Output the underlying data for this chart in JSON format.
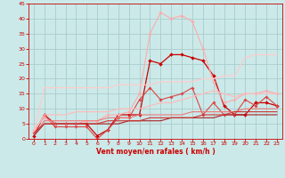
{
  "background_color": "#cbe9e9",
  "grid_color": "#aacccc",
  "xlabel": "Vent moyen/en rafales ( km/h )",
  "xlabel_color": "#cc0000",
  "tick_color": "#cc0000",
  "xlim": [
    -0.5,
    23.5
  ],
  "ylim": [
    0,
    45
  ],
  "yticks": [
    0,
    5,
    10,
    15,
    20,
    25,
    30,
    35,
    40,
    45
  ],
  "xticks": [
    0,
    1,
    2,
    3,
    4,
    5,
    6,
    7,
    8,
    9,
    10,
    11,
    12,
    13,
    14,
    15,
    16,
    17,
    18,
    19,
    20,
    21,
    22,
    23
  ],
  "series": [
    {
      "x": [
        0,
        1,
        2,
        3,
        4,
        5,
        6,
        7,
        8,
        9,
        10,
        11,
        12,
        13,
        14,
        15,
        16,
        17,
        18,
        19,
        20,
        21,
        22,
        23
      ],
      "y": [
        1,
        8,
        5,
        5,
        5,
        5,
        1,
        3,
        8,
        8,
        8,
        26,
        25,
        28,
        28,
        27,
        26,
        21,
        11,
        8,
        8,
        12,
        12,
        11
      ],
      "color": "#cc0000",
      "lw": 0.9,
      "marker": "D",
      "ms": 2.0
    },
    {
      "x": [
        0,
        1,
        2,
        3,
        4,
        5,
        6,
        7,
        8,
        9,
        10,
        11,
        12,
        13,
        14,
        15,
        16,
        17,
        18,
        19,
        20,
        21,
        22,
        23
      ],
      "y": [
        2,
        8,
        4,
        4,
        4,
        4,
        0,
        3,
        7,
        7,
        13,
        17,
        13,
        14,
        15,
        17,
        8,
        12,
        8,
        8,
        13,
        11,
        14,
        11
      ],
      "color": "#dd4444",
      "lw": 0.8,
      "marker": "D",
      "ms": 1.8
    },
    {
      "x": [
        0,
        1,
        2,
        3,
        4,
        5,
        6,
        7,
        8,
        9,
        10,
        11,
        12,
        13,
        14,
        15,
        16,
        17,
        18,
        19,
        20,
        21,
        22,
        23
      ],
      "y": [
        3,
        7,
        5,
        5,
        5,
        6,
        6,
        8,
        8,
        9,
        15,
        35,
        42,
        40,
        41,
        39,
        30,
        19,
        12,
        13,
        15,
        15,
        16,
        15
      ],
      "color": "#ffaaaa",
      "lw": 0.8,
      "marker": "D",
      "ms": 1.8
    },
    {
      "x": [
        0,
        1,
        2,
        3,
        4,
        5,
        6,
        7,
        8,
        9,
        10,
        11,
        12,
        13,
        14,
        15,
        16,
        17,
        18,
        19,
        20,
        21,
        22,
        23
      ],
      "y": [
        2,
        17,
        17,
        17,
        17,
        17,
        17,
        17,
        18,
        18,
        18,
        18,
        19,
        19,
        19,
        19,
        20,
        20,
        21,
        21,
        27,
        28,
        28,
        28
      ],
      "color": "#ffcccc",
      "lw": 0.9,
      "marker": null,
      "ms": 0
    },
    {
      "x": [
        0,
        1,
        2,
        3,
        4,
        5,
        6,
        7,
        8,
        9,
        10,
        11,
        12,
        13,
        14,
        15,
        16,
        17,
        18,
        19,
        20,
        21,
        22,
        23
      ],
      "y": [
        2,
        8,
        8,
        8,
        9,
        9,
        9,
        9,
        10,
        10,
        10,
        11,
        12,
        12,
        13,
        14,
        15,
        16,
        15,
        14,
        15,
        15,
        15,
        15
      ],
      "color": "#ffbbbb",
      "lw": 0.9,
      "marker": null,
      "ms": 0
    },
    {
      "x": [
        0,
        1,
        2,
        3,
        4,
        5,
        6,
        7,
        8,
        9,
        10,
        11,
        12,
        13,
        14,
        15,
        16,
        17,
        18,
        19,
        20,
        21,
        22,
        23
      ],
      "y": [
        1,
        6,
        6,
        6,
        6,
        6,
        6,
        7,
        7,
        7,
        8,
        8,
        8,
        8,
        8,
        9,
        9,
        9,
        9,
        9,
        10,
        10,
        10,
        10
      ],
      "color": "#ee7777",
      "lw": 0.8,
      "marker": null,
      "ms": 0
    },
    {
      "x": [
        0,
        1,
        2,
        3,
        4,
        5,
        6,
        7,
        8,
        9,
        10,
        11,
        12,
        13,
        14,
        15,
        16,
        17,
        18,
        19,
        20,
        21,
        22,
        23
      ],
      "y": [
        1,
        5,
        5,
        5,
        5,
        5,
        5,
        5,
        5,
        6,
        6,
        6,
        6,
        7,
        7,
        7,
        7,
        7,
        8,
        8,
        8,
        8,
        8,
        8
      ],
      "color": "#aa2222",
      "lw": 0.8,
      "marker": null,
      "ms": 0
    },
    {
      "x": [
        0,
        1,
        2,
        3,
        4,
        5,
        6,
        7,
        8,
        9,
        10,
        11,
        12,
        13,
        14,
        15,
        16,
        17,
        18,
        19,
        20,
        21,
        22,
        23
      ],
      "y": [
        2,
        5,
        5,
        5,
        5,
        5,
        5,
        6,
        6,
        6,
        6,
        7,
        7,
        7,
        7,
        7,
        8,
        8,
        8,
        9,
        9,
        9,
        9,
        9
      ],
      "color": "#cc3333",
      "lw": 0.8,
      "marker": null,
      "ms": 0
    }
  ]
}
